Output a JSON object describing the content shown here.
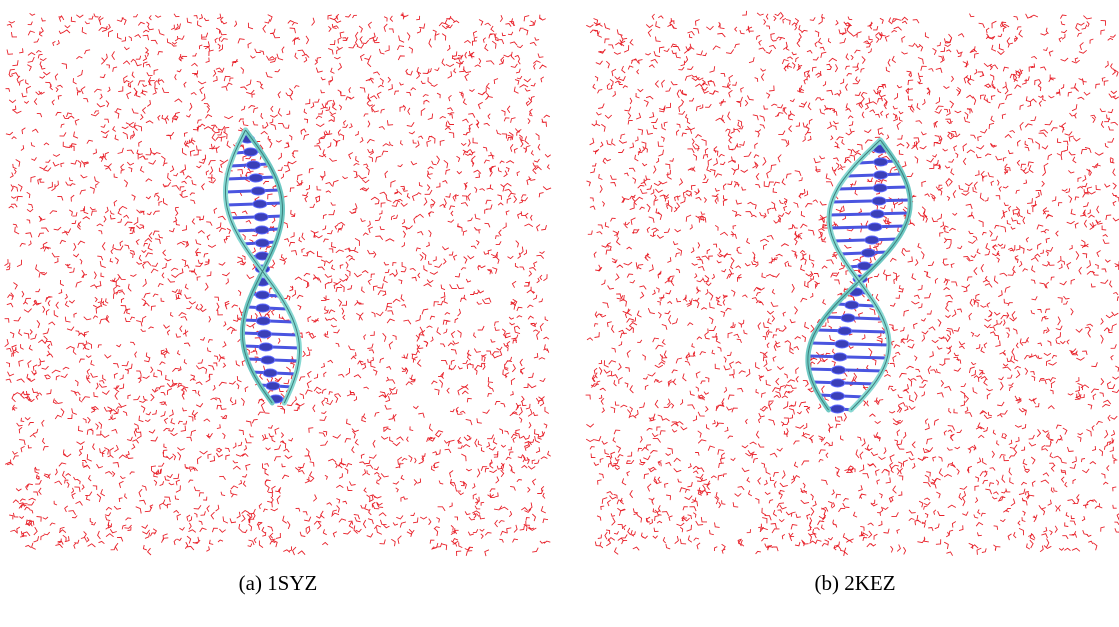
{
  "panels": [
    {
      "caption": "(a) 1SYZ"
    },
    {
      "caption": "(b) 2KEZ"
    }
  ]
}
